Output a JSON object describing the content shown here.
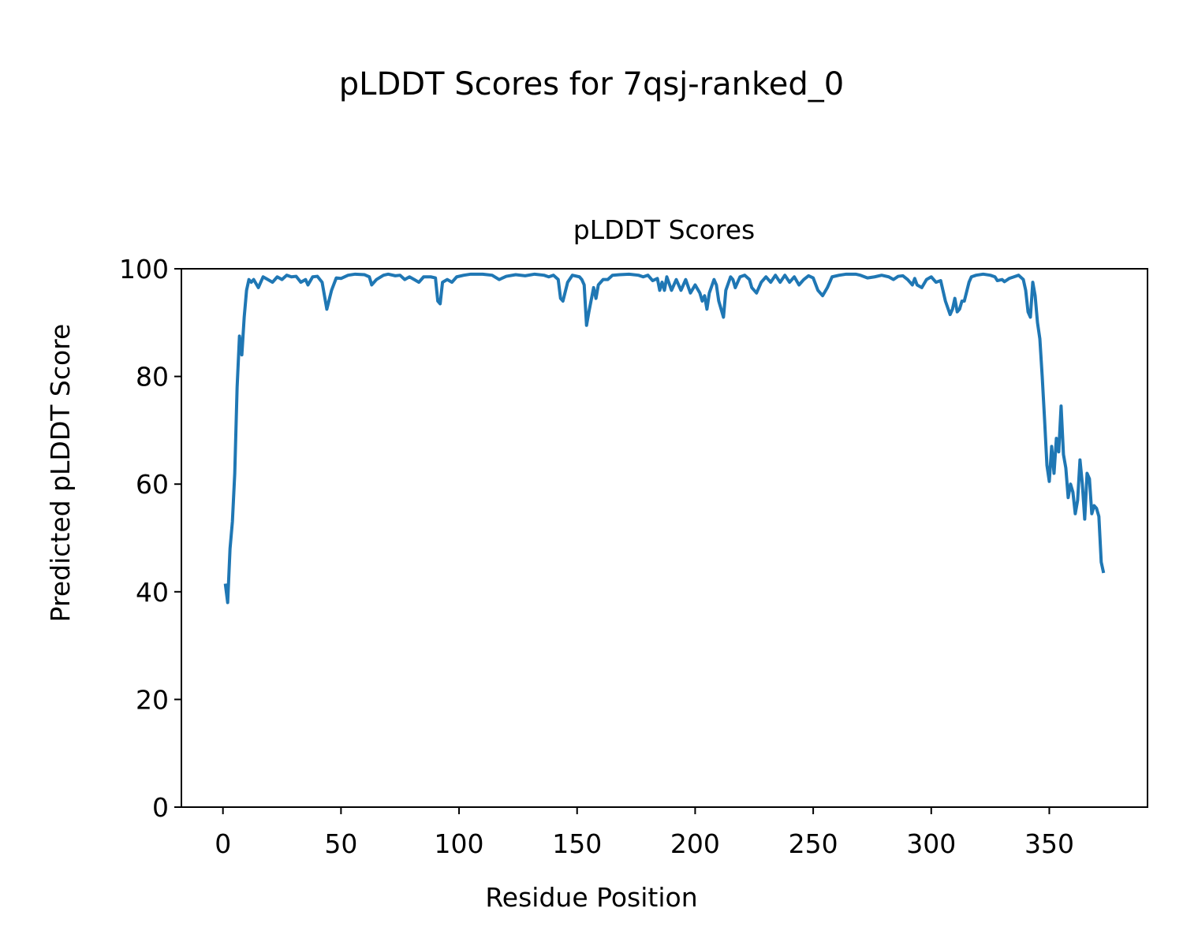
{
  "chart_data": {
    "type": "line",
    "title": "pLDDT Scores for 7qsj-ranked_0",
    "subtitle": "pLDDT Scores",
    "x_label": "Residue Position",
    "y_label": "Predicted pLDDT Score",
    "xlim": [
      -17.6,
      391.6
    ],
    "ylim": [
      0,
      100
    ],
    "xticks": [
      0,
      50,
      100,
      150,
      200,
      250,
      300,
      350
    ],
    "yticks": [
      0,
      20,
      40,
      60,
      80,
      100
    ],
    "grid": false,
    "x": [
      1,
      2,
      3,
      4,
      5,
      6,
      7,
      8,
      9,
      10,
      11,
      12,
      13,
      15,
      17,
      19,
      21,
      23,
      25,
      27,
      29,
      31,
      33,
      35,
      36,
      38,
      40,
      42,
      44,
      46,
      48,
      50,
      53,
      56,
      60,
      62,
      63,
      65,
      68,
      70,
      73,
      75,
      77,
      79,
      81,
      83,
      85,
      88,
      90,
      91,
      92,
      93,
      95,
      97,
      99,
      102,
      105,
      110,
      114,
      117,
      120,
      124,
      128,
      132,
      136,
      138,
      140,
      142,
      143,
      144,
      146,
      148,
      151,
      152,
      153,
      154,
      155,
      157,
      158,
      159,
      161,
      163,
      165,
      168,
      172,
      176,
      178,
      180,
      182,
      184,
      185,
      186,
      187,
      188,
      190,
      192,
      194,
      196,
      198,
      200,
      202,
      203,
      204,
      205,
      206,
      208,
      209,
      210,
      212,
      213,
      215,
      216,
      217,
      219,
      221,
      223,
      224,
      226,
      228,
      230,
      232,
      234,
      236,
      238,
      240,
      242,
      244,
      246,
      248,
      250,
      252,
      254,
      256,
      258,
      261,
      264,
      268,
      270,
      273,
      276,
      279,
      282,
      284,
      286,
      288,
      290,
      292,
      293,
      294,
      296,
      298,
      300,
      302,
      304,
      306,
      308,
      309,
      310,
      311,
      312,
      313,
      314,
      316,
      317,
      319,
      322,
      325,
      327,
      328,
      330,
      331,
      333,
      335,
      337,
      339,
      340,
      341,
      342,
      343,
      344,
      345,
      346,
      347,
      348,
      349,
      350,
      351,
      352,
      353,
      354,
      355,
      356,
      357,
      358,
      359,
      360,
      361,
      362,
      363,
      364,
      365,
      366,
      367,
      368,
      369,
      370,
      371,
      372,
      373
    ],
    "series": [
      {
        "color": "#1f77b4",
        "values": [
          41.5,
          38,
          48,
          53,
          62,
          78,
          87.5,
          84,
          91,
          96,
          98,
          97.5,
          98,
          96.5,
          98.5,
          98,
          97.5,
          98.5,
          98,
          98.8,
          98.5,
          98.6,
          97.5,
          98,
          97,
          98.5,
          98.6,
          97.5,
          92.5,
          96,
          98.3,
          98.2,
          98.8,
          99,
          98.9,
          98.5,
          97,
          98,
          98.8,
          99,
          98.7,
          98.8,
          98,
          98.5,
          98,
          97.5,
          98.5,
          98.5,
          98.3,
          94,
          93.5,
          97.5,
          98,
          97.5,
          98.5,
          98.8,
          99,
          99,
          98.8,
          98,
          98.6,
          98.9,
          98.7,
          99,
          98.8,
          98.5,
          98.8,
          98,
          94.5,
          94,
          97.5,
          98.8,
          98.5,
          98,
          97,
          89.5,
          92,
          96.5,
          94.5,
          97,
          98,
          98,
          98.8,
          98.9,
          99,
          98.8,
          98.5,
          98.8,
          97.8,
          98.2,
          96,
          97.5,
          96,
          98.5,
          96,
          98,
          96,
          98,
          95.5,
          97,
          95.5,
          94,
          95,
          92.5,
          95.5,
          98,
          97,
          94,
          91,
          96,
          98.5,
          98,
          96.5,
          98.5,
          98.8,
          98,
          96.5,
          95.5,
          97.5,
          98.5,
          97.5,
          98.8,
          97.5,
          98.8,
          97.5,
          98.5,
          97,
          98,
          98.7,
          98.3,
          96,
          95,
          96.5,
          98.5,
          98.8,
          99,
          99,
          98.8,
          98.3,
          98.5,
          98.8,
          98.5,
          98,
          98.6,
          98.7,
          98,
          97,
          98.2,
          97,
          96.5,
          98,
          98.5,
          97.5,
          97.8,
          94,
          91.5,
          92.5,
          94.5,
          92,
          92.5,
          94,
          94,
          97.5,
          98.5,
          98.8,
          99,
          98.8,
          98.5,
          97.8,
          98,
          97.6,
          98.2,
          98.5,
          98.8,
          98,
          96,
          92,
          91,
          97.5,
          95,
          90,
          87,
          80,
          72,
          63.5,
          60.5,
          67,
          62,
          68.5,
          66,
          74.5,
          65.5,
          63,
          57.5,
          60,
          58.5,
          54.5,
          57,
          64.5,
          60,
          53.5,
          62,
          61,
          54.5,
          56,
          55.5,
          54,
          45.5,
          43.5
        ]
      }
    ]
  }
}
